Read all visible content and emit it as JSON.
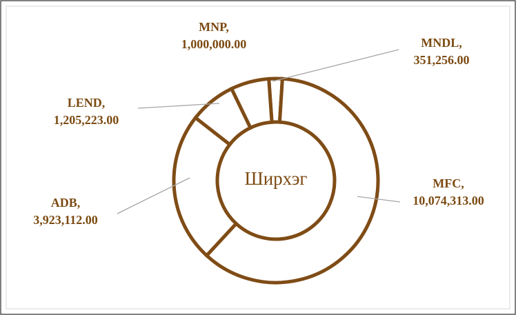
{
  "chart_data": {
    "type": "donut",
    "title": "Ширхэг",
    "categories": [
      "MNDL",
      "MFC",
      "ADB",
      "LEND",
      "MNP"
    ],
    "values": [
      351256,
      10074313,
      3923112,
      1205223,
      1000000
    ],
    "value_labels": [
      "351,256.00",
      "10,074,313.00",
      "3,923,112.00",
      "1,205,223.00",
      "1,000,000.00"
    ],
    "label_separator": ",",
    "color": "#ffffff",
    "edge_color": "#7f4c16"
  }
}
